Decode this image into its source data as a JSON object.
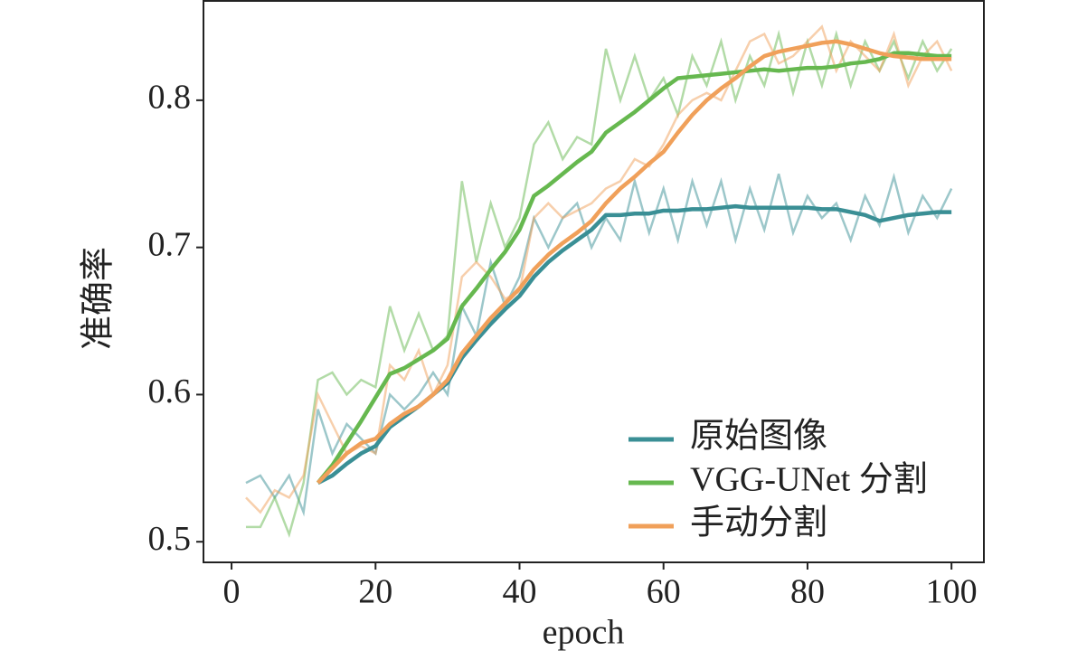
{
  "chart_data": {
    "type": "line",
    "xlabel": "epoch",
    "ylabel": "准确率",
    "x": [
      2,
      4,
      6,
      8,
      10,
      12,
      14,
      16,
      18,
      20,
      22,
      24,
      26,
      28,
      30,
      32,
      34,
      36,
      38,
      40,
      42,
      44,
      46,
      48,
      50,
      52,
      54,
      56,
      58,
      60,
      62,
      64,
      66,
      68,
      70,
      72,
      74,
      76,
      78,
      80,
      82,
      84,
      86,
      88,
      90,
      92,
      94,
      96,
      98,
      100
    ],
    "xlim": [
      -3.9,
      104.5
    ],
    "ylim": [
      0.486,
      0.8675
    ],
    "xticks": [
      0,
      20,
      40,
      60,
      80,
      100
    ],
    "yticks": [
      0.5,
      0.6,
      0.7,
      0.8
    ],
    "legend": "lower right",
    "series": [
      {
        "name": "原始图像",
        "color": "#3a8f95",
        "values": [
          null,
          null,
          null,
          null,
          null,
          0.54,
          0.545,
          0.553,
          0.56,
          0.565,
          0.578,
          0.585,
          0.592,
          0.6,
          0.608,
          0.625,
          0.637,
          0.648,
          0.658,
          0.667,
          0.68,
          0.69,
          0.698,
          0.705,
          0.712,
          0.722,
          0.722,
          0.723,
          0.723,
          0.725,
          0.725,
          0.726,
          0.726,
          0.727,
          0.728,
          0.727,
          0.727,
          0.727,
          0.727,
          0.727,
          0.726,
          0.726,
          0.724,
          0.722,
          0.718,
          0.72,
          0.722,
          0.723,
          0.724,
          0.724
        ],
        "raw_values": [
          0.54,
          0.545,
          0.53,
          0.545,
          0.52,
          0.59,
          0.56,
          0.58,
          0.57,
          0.56,
          0.6,
          0.59,
          0.6,
          0.615,
          0.6,
          0.66,
          0.64,
          0.69,
          0.66,
          0.68,
          0.72,
          0.7,
          0.72,
          0.73,
          0.7,
          0.72,
          0.705,
          0.745,
          0.71,
          0.74,
          0.705,
          0.745,
          0.715,
          0.745,
          0.705,
          0.74,
          0.712,
          0.75,
          0.71,
          0.735,
          0.72,
          0.73,
          0.705,
          0.735,
          0.715,
          0.748,
          0.71,
          0.735,
          0.72,
          0.74
        ]
      },
      {
        "name": "VGG-UNet 分割",
        "color": "#66b84f",
        "values": [
          null,
          null,
          null,
          null,
          null,
          0.54,
          0.552,
          0.567,
          0.582,
          0.598,
          0.614,
          0.618,
          0.624,
          0.63,
          0.638,
          0.66,
          0.672,
          0.685,
          0.697,
          0.712,
          0.735,
          0.742,
          0.75,
          0.758,
          0.765,
          0.778,
          0.785,
          0.792,
          0.8,
          0.808,
          0.815,
          0.816,
          0.817,
          0.818,
          0.819,
          0.82,
          0.821,
          0.82,
          0.821,
          0.822,
          0.822,
          0.823,
          0.825,
          0.826,
          0.828,
          0.832,
          0.832,
          0.831,
          0.83,
          0.83
        ],
        "raw_values": [
          0.51,
          0.51,
          0.53,
          0.505,
          0.54,
          0.61,
          0.615,
          0.6,
          0.61,
          0.605,
          0.66,
          0.63,
          0.655,
          0.63,
          0.64,
          0.745,
          0.69,
          0.73,
          0.7,
          0.72,
          0.77,
          0.785,
          0.76,
          0.775,
          0.77,
          0.835,
          0.8,
          0.83,
          0.8,
          0.815,
          0.79,
          0.83,
          0.81,
          0.84,
          0.8,
          0.83,
          0.81,
          0.845,
          0.805,
          0.84,
          0.81,
          0.845,
          0.81,
          0.84,
          0.82,
          0.84,
          0.815,
          0.84,
          0.82,
          0.835
        ]
      },
      {
        "name": "手动分割",
        "color": "#f0a05a",
        "values": [
          null,
          null,
          null,
          null,
          null,
          0.54,
          0.55,
          0.56,
          0.567,
          0.57,
          0.58,
          0.587,
          0.592,
          0.6,
          0.61,
          0.628,
          0.64,
          0.652,
          0.662,
          0.672,
          0.685,
          0.695,
          0.703,
          0.71,
          0.718,
          0.73,
          0.74,
          0.748,
          0.757,
          0.765,
          0.778,
          0.79,
          0.8,
          0.808,
          0.815,
          0.823,
          0.83,
          0.833,
          0.835,
          0.837,
          0.839,
          0.84,
          0.838,
          0.835,
          0.832,
          0.83,
          0.829,
          0.828,
          0.828,
          0.828
        ],
        "raw_values": [
          0.53,
          0.52,
          0.535,
          0.53,
          0.545,
          0.6,
          0.58,
          0.56,
          0.565,
          0.56,
          0.62,
          0.61,
          0.63,
          0.6,
          0.62,
          0.68,
          0.69,
          0.68,
          0.665,
          0.67,
          0.72,
          0.73,
          0.72,
          0.725,
          0.73,
          0.74,
          0.745,
          0.76,
          0.755,
          0.77,
          0.79,
          0.8,
          0.805,
          0.8,
          0.82,
          0.84,
          0.845,
          0.825,
          0.83,
          0.84,
          0.85,
          0.82,
          0.84,
          0.83,
          0.82,
          0.845,
          0.81,
          0.83,
          0.84,
          0.82
        ]
      }
    ]
  }
}
